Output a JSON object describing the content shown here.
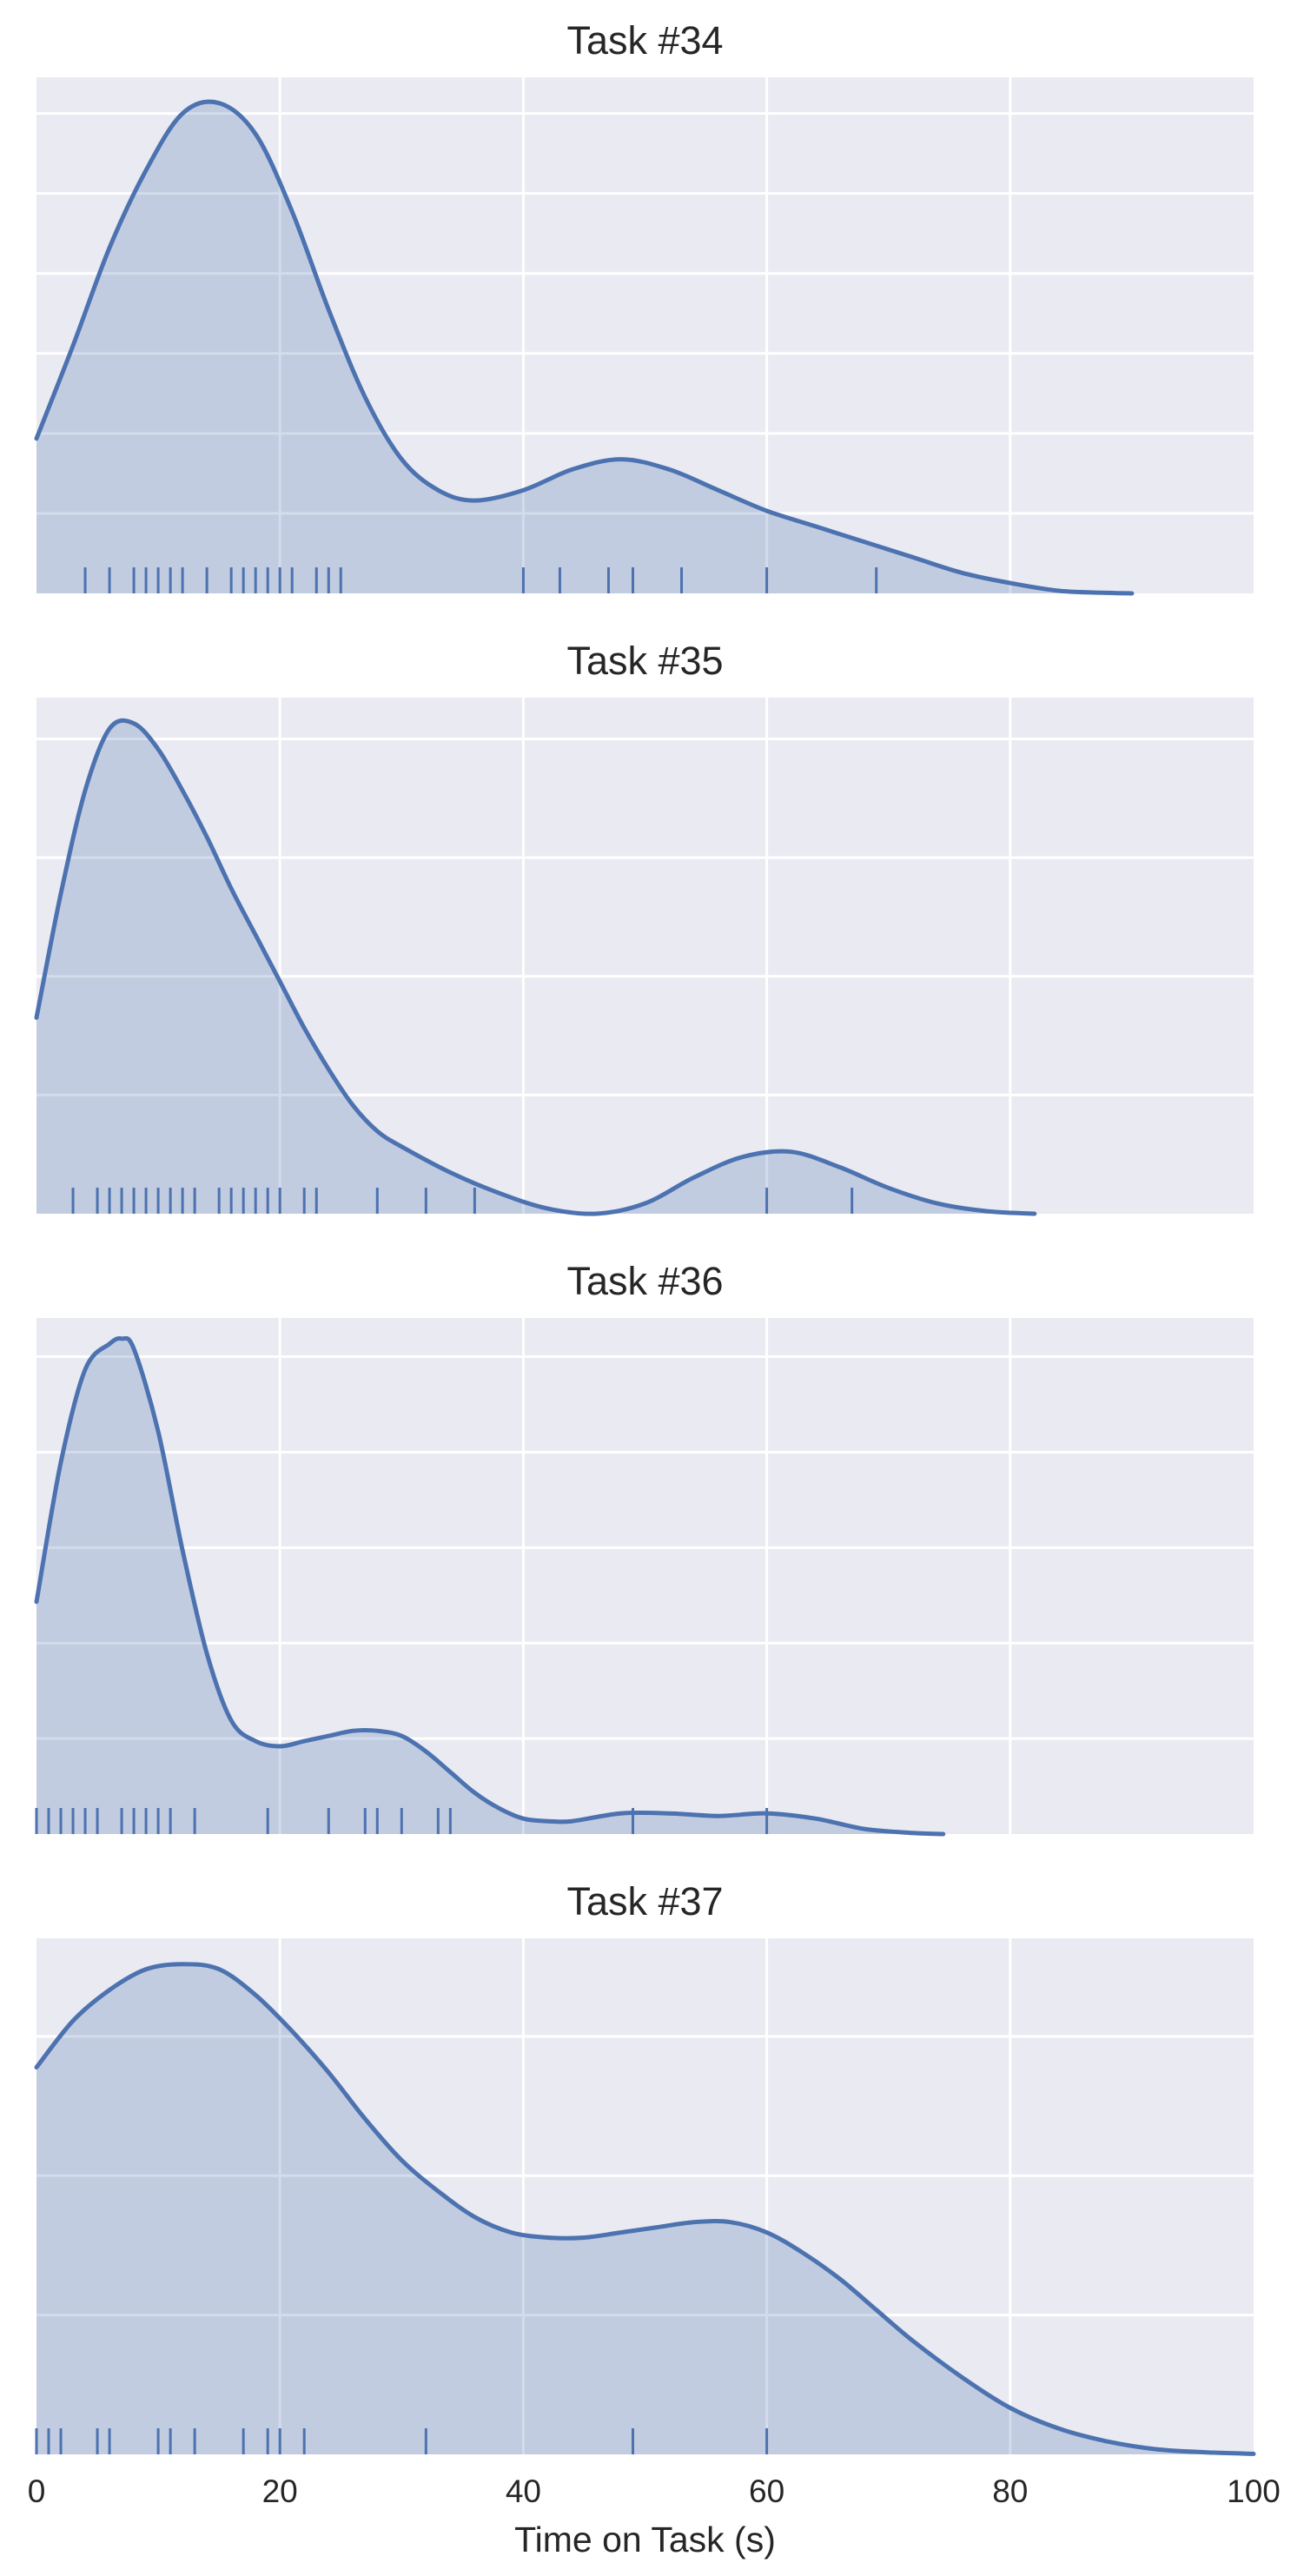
{
  "figure": {
    "xlabel": "Time on Task (s)",
    "colors": {
      "background": "#eaeaf2",
      "grid": "#ffffff",
      "line": "#4c72b0",
      "fill": "rgba(76,114,176,0.25)"
    }
  },
  "chart_data": [
    {
      "type": "area",
      "title": "Task #34",
      "xlabel": "",
      "ylabel": "",
      "xlim": [
        0,
        100
      ],
      "ylim": [
        0,
        1
      ],
      "yticks": [
        0.155,
        0.31,
        0.465,
        0.62,
        0.775,
        0.93
      ],
      "series": [
        {
          "x": [
            0,
            3,
            6,
            9,
            12,
            15,
            18,
            21,
            24,
            27,
            30,
            33,
            36,
            40,
            44,
            48,
            52,
            56,
            60,
            64,
            68,
            72,
            76,
            80,
            84,
            88,
            90
          ],
          "y": [
            0.3,
            0.48,
            0.67,
            0.82,
            0.93,
            0.95,
            0.89,
            0.74,
            0.55,
            0.38,
            0.26,
            0.2,
            0.18,
            0.2,
            0.24,
            0.26,
            0.24,
            0.2,
            0.16,
            0.13,
            0.1,
            0.07,
            0.04,
            0.02,
            0.005,
            0.001,
            0
          ]
        }
      ],
      "rug": [
        4,
        6,
        8,
        9,
        10,
        11,
        12,
        14,
        16,
        17,
        18,
        19,
        20,
        21,
        23,
        24,
        25,
        40,
        43,
        47,
        49,
        53,
        60,
        69
      ],
      "grid": true
    },
    {
      "type": "area",
      "title": "Task #35",
      "xlabel": "",
      "ylabel": "",
      "xlim": [
        0,
        100
      ],
      "ylim": [
        0,
        1
      ],
      "yticks": [
        0.23,
        0.46,
        0.69,
        0.92
      ],
      "series": [
        {
          "x": [
            0,
            2,
            4,
            6,
            8,
            10,
            12,
            14,
            16,
            18,
            20,
            22,
            24,
            26,
            28,
            30,
            34,
            38,
            42,
            46,
            50,
            54,
            58,
            62,
            66,
            70,
            74,
            78,
            82
          ],
          "y": [
            0.38,
            0.62,
            0.82,
            0.94,
            0.95,
            0.9,
            0.82,
            0.73,
            0.63,
            0.54,
            0.45,
            0.36,
            0.28,
            0.21,
            0.16,
            0.13,
            0.08,
            0.04,
            0.01,
            0.0,
            0.02,
            0.07,
            0.11,
            0.12,
            0.09,
            0.05,
            0.02,
            0.005,
            0
          ]
        }
      ],
      "rug": [
        3,
        5,
        6,
        7,
        8,
        9,
        10,
        11,
        12,
        13,
        15,
        16,
        17,
        18,
        19,
        20,
        22,
        23,
        28,
        32,
        36,
        60,
        67
      ],
      "grid": true
    },
    {
      "type": "area",
      "title": "Task #36",
      "xlabel": "",
      "ylabel": "",
      "xlim": [
        0,
        100
      ],
      "ylim": [
        0,
        1
      ],
      "yticks": [
        0.185,
        0.37,
        0.555,
        0.74,
        0.925
      ],
      "series": [
        {
          "x": [
            0,
            2,
            4,
            6,
            7,
            8,
            10,
            12,
            14,
            16,
            18,
            20,
            22,
            24,
            26,
            28,
            30,
            32,
            34,
            36,
            38,
            40,
            42,
            44,
            48,
            52,
            56,
            60,
            64,
            68,
            72,
            74.5
          ],
          "y": [
            0.45,
            0.72,
            0.9,
            0.95,
            0.96,
            0.94,
            0.78,
            0.55,
            0.35,
            0.22,
            0.18,
            0.17,
            0.18,
            0.19,
            0.2,
            0.2,
            0.19,
            0.16,
            0.12,
            0.08,
            0.05,
            0.03,
            0.025,
            0.025,
            0.04,
            0.04,
            0.035,
            0.04,
            0.03,
            0.01,
            0.002,
            0
          ]
        }
      ],
      "rug": [
        0,
        1,
        2,
        3,
        4,
        5,
        7,
        8,
        9,
        10,
        11,
        13,
        19,
        24,
        27,
        28,
        30,
        33,
        34,
        49,
        60
      ],
      "grid": true
    },
    {
      "type": "area",
      "title": "Task #37",
      "xlabel": "Time on Task (s)",
      "ylabel": "",
      "xlim": [
        0,
        100
      ],
      "ylim": [
        0,
        1
      ],
      "yticks": [
        0.27,
        0.54,
        0.81
      ],
      "xticks": [
        0,
        20,
        40,
        60,
        80,
        100
      ],
      "series": [
        {
          "x": [
            0,
            3,
            6,
            9,
            12,
            15,
            18,
            21,
            24,
            27,
            30,
            33,
            36,
            39,
            42,
            45,
            48,
            51,
            54,
            57,
            60,
            63,
            66,
            69,
            72,
            76,
            80,
            84,
            88,
            92,
            96,
            100
          ],
          "y": [
            0.75,
            0.84,
            0.9,
            0.94,
            0.95,
            0.94,
            0.89,
            0.82,
            0.74,
            0.65,
            0.57,
            0.51,
            0.46,
            0.43,
            0.42,
            0.42,
            0.43,
            0.44,
            0.45,
            0.45,
            0.43,
            0.39,
            0.34,
            0.28,
            0.22,
            0.15,
            0.09,
            0.05,
            0.025,
            0.01,
            0.004,
            0.001
          ]
        }
      ],
      "rug": [
        0,
        1,
        2,
        5,
        6,
        10,
        11,
        13,
        17,
        19,
        20,
        22,
        32,
        49,
        60
      ],
      "grid": true
    }
  ]
}
